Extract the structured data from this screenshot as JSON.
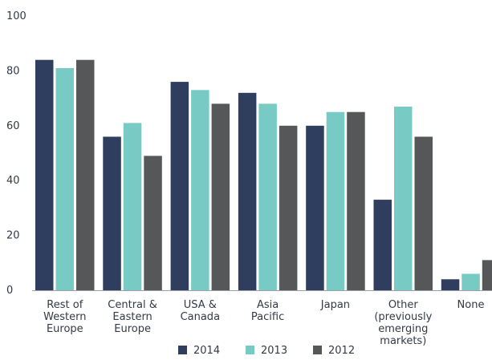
{
  "chart_data": {
    "type": "bar",
    "title": "",
    "xlabel": "",
    "ylabel": "",
    "ylim": [
      0,
      100
    ],
    "yticks": [
      0,
      20,
      40,
      60,
      80,
      100
    ],
    "grid": false,
    "legend_position": "bottom",
    "categories": [
      "Rest of Western Europe",
      "Central & Eastern Europe",
      "USA & Canada",
      "Asia Pacific",
      "Japan",
      "Other (previously emerging markets)",
      "None"
    ],
    "category_lines": [
      [
        "Rest of",
        "Western",
        "Europe"
      ],
      [
        "Central &",
        "Eastern",
        "Europe"
      ],
      [
        "USA &",
        "Canada"
      ],
      [
        "Asia",
        "Pacific"
      ],
      [
        "Japan"
      ],
      [
        "Other",
        "(previously",
        "emerging",
        "markets)"
      ],
      [
        "None"
      ]
    ],
    "series": [
      {
        "name": "2014",
        "color": "#2f3e5e",
        "values": [
          84,
          56,
          76,
          72,
          60,
          33,
          4
        ]
      },
      {
        "name": "2013",
        "color": "#77cbc4",
        "values": [
          81,
          61,
          73,
          68,
          65,
          67,
          6
        ]
      },
      {
        "name": "2012",
        "color": "#555759",
        "values": [
          84,
          49,
          68,
          60,
          65,
          56,
          11
        ]
      }
    ]
  }
}
